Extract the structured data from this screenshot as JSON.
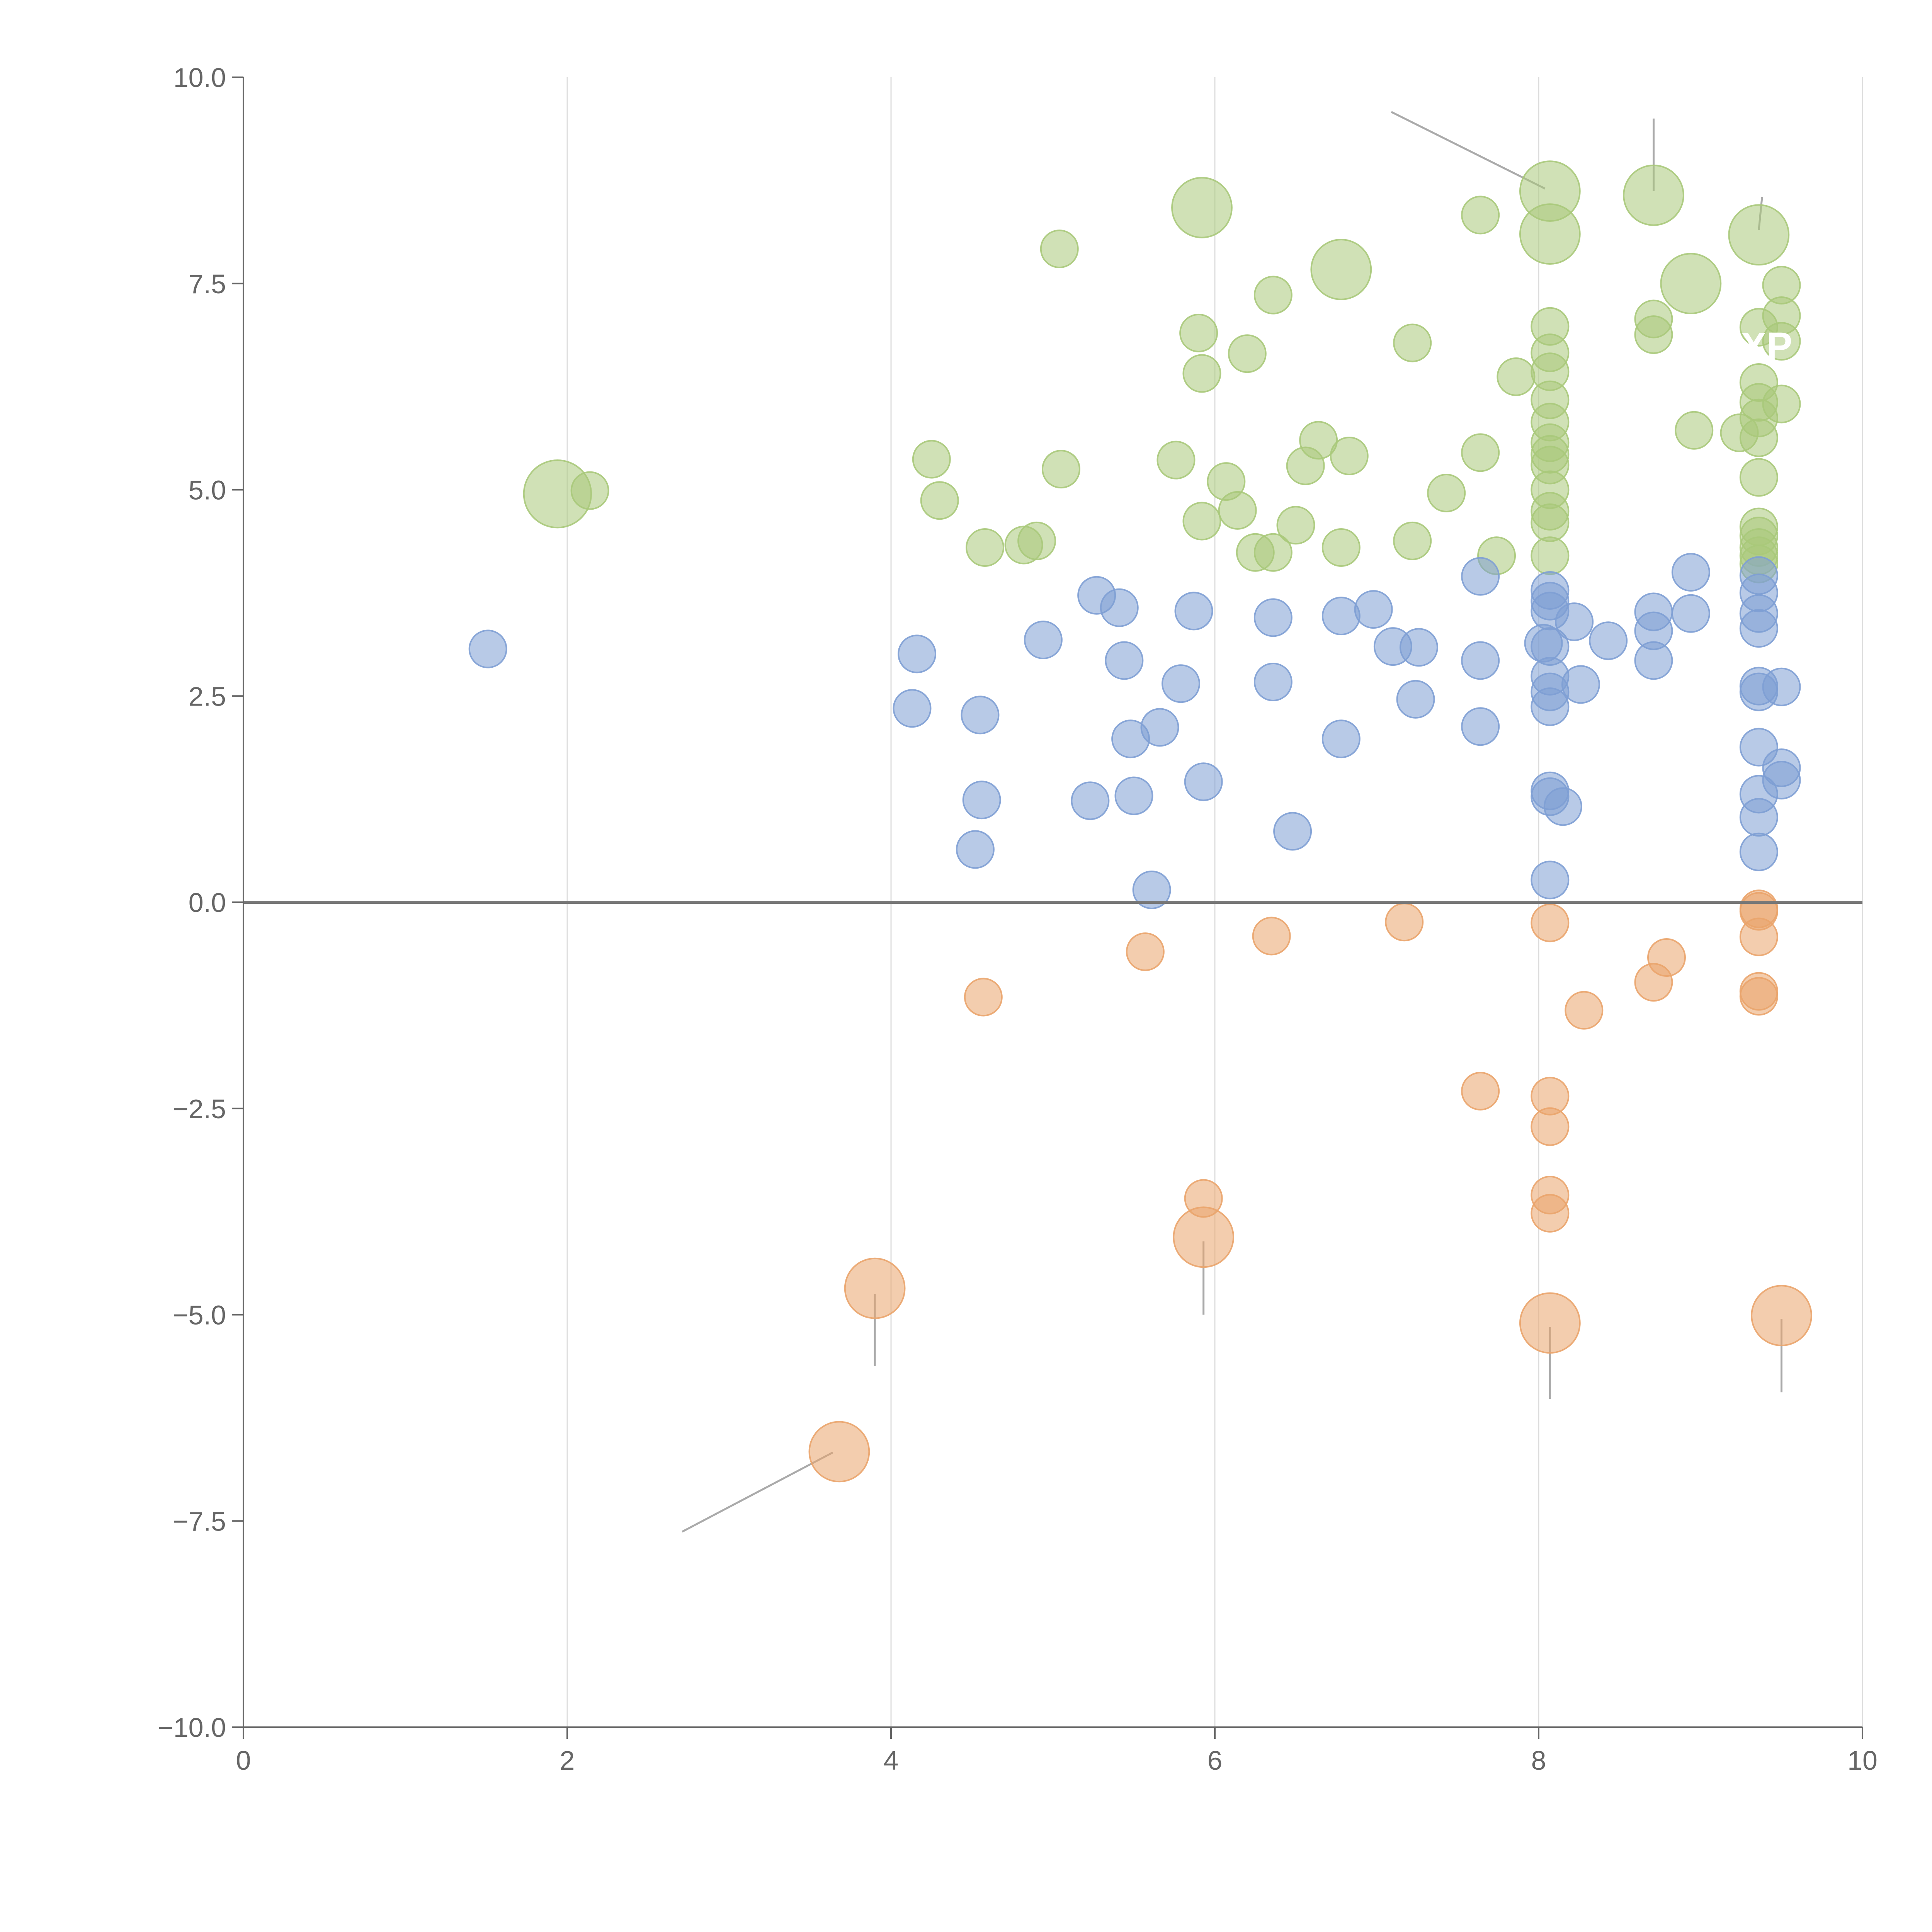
{
  "chart_data": {
    "type": "scatter",
    "title": "",
    "xlabel": "",
    "ylabel": "",
    "xlim": [
      0,
      10
    ],
    "ylim": [
      -10,
      10
    ],
    "x_ticks": [
      "0",
      "2",
      "4",
      "6",
      "8",
      "10"
    ],
    "y_ticks": [
      "10.0",
      "7.5",
      "5.0",
      "2.5",
      "0.0",
      "−2.5",
      "−5.0",
      "−7.5",
      "−10.0"
    ],
    "x_tick_values": [
      0,
      2,
      4,
      6,
      8,
      10
    ],
    "y_tick_values": [
      10,
      7.5,
      5,
      2.5,
      0,
      -2.5,
      -5,
      -7.5,
      -10
    ],
    "vertical_grid": true,
    "zero_line": true,
    "colors": {
      "green": "#a9c97a",
      "blue": "#7e9fd4",
      "orange": "#eaa46c",
      "axis": "#666666",
      "grid": "#dddddd",
      "leader": "#aaaaaa"
    },
    "series": [
      {
        "name": "green",
        "size_unit_small": 1,
        "points": [
          [
            1.94,
            4.95,
            3.3
          ],
          [
            2.14,
            4.99,
            1
          ],
          [
            4.25,
            5.37,
            1
          ],
          [
            4.3,
            4.87,
            1
          ],
          [
            4.58,
            4.3,
            1
          ],
          [
            4.82,
            4.33,
            1
          ],
          [
            4.9,
            4.38,
            1
          ],
          [
            5.04,
            7.92,
            1
          ],
          [
            5.05,
            5.25,
            1
          ],
          [
            5.76,
            5.36,
            1
          ],
          [
            5.92,
            8.42,
            2.6
          ],
          [
            5.9,
            6.9,
            1
          ],
          [
            5.92,
            6.41,
            1
          ],
          [
            5.92,
            4.62,
            1
          ],
          [
            6.07,
            5.1,
            1
          ],
          [
            6.14,
            4.75,
            1
          ],
          [
            6.2,
            6.65,
            1
          ],
          [
            6.25,
            4.24,
            1
          ],
          [
            6.36,
            4.24,
            1
          ],
          [
            6.36,
            7.36,
            1
          ],
          [
            6.5,
            4.57,
            1
          ],
          [
            6.56,
            5.29,
            1
          ],
          [
            6.64,
            5.6,
            1
          ],
          [
            6.78,
            7.67,
            2.6
          ],
          [
            6.78,
            4.3,
            1
          ],
          [
            6.83,
            5.41,
            1
          ],
          [
            7.22,
            6.78,
            1
          ],
          [
            7.22,
            4.38,
            1
          ],
          [
            7.43,
            4.96,
            1
          ],
          [
            7.64,
            8.33,
            1
          ],
          [
            7.64,
            5.45,
            1
          ],
          [
            7.74,
            4.2,
            1
          ],
          [
            7.86,
            6.37,
            1
          ],
          [
            8.07,
            8.62,
            2.6
          ],
          [
            8.07,
            8.1,
            2.6
          ],
          [
            8.07,
            6.98,
            1
          ],
          [
            8.07,
            6.66,
            1
          ],
          [
            8.07,
            6.43,
            1
          ],
          [
            8.07,
            6.09,
            1
          ],
          [
            8.07,
            5.82,
            1
          ],
          [
            8.07,
            5.57,
            1
          ],
          [
            8.07,
            5.43,
            1
          ],
          [
            8.07,
            5.3,
            1
          ],
          [
            8.07,
            5.0,
            1
          ],
          [
            8.07,
            4.74,
            1
          ],
          [
            8.07,
            4.6,
            1
          ],
          [
            8.07,
            4.2,
            1
          ],
          [
            8.71,
            8.57,
            2.6
          ],
          [
            8.71,
            7.07,
            1
          ],
          [
            8.71,
            6.88,
            1
          ],
          [
            8.94,
            7.5,
            2.6
          ],
          [
            8.96,
            5.72,
            1
          ],
          [
            9.24,
            5.69,
            1
          ],
          [
            9.36,
            8.09,
            2.6
          ],
          [
            9.36,
            6.97,
            1
          ],
          [
            9.36,
            6.3,
            1
          ],
          [
            9.36,
            6.06,
            1
          ],
          [
            9.36,
            5.87,
            1
          ],
          [
            9.36,
            5.63,
            1
          ],
          [
            9.36,
            5.15,
            1
          ],
          [
            9.36,
            4.55,
            1
          ],
          [
            9.36,
            4.44,
            1
          ],
          [
            9.36,
            4.3,
            1
          ],
          [
            9.36,
            4.2,
            1
          ],
          [
            9.36,
            4.1,
            1
          ],
          [
            9.5,
            7.48,
            1
          ],
          [
            9.5,
            7.11,
            1
          ],
          [
            9.5,
            6.8,
            1
          ],
          [
            9.5,
            6.04,
            1
          ]
        ]
      },
      {
        "name": "blue",
        "points": [
          [
            1.51,
            3.07,
            1
          ],
          [
            4.13,
            2.35,
            1
          ],
          [
            4.16,
            3.01,
            1
          ],
          [
            4.52,
            0.64,
            1
          ],
          [
            4.55,
            2.27,
            1
          ],
          [
            4.56,
            1.24,
            1
          ],
          [
            4.94,
            3.18,
            1
          ],
          [
            5.23,
            1.23,
            1
          ],
          [
            5.27,
            3.72,
            1
          ],
          [
            5.41,
            3.57,
            1
          ],
          [
            5.44,
            2.93,
            1
          ],
          [
            5.48,
            1.98,
            1
          ],
          [
            5.5,
            1.29,
            1
          ],
          [
            5.61,
            0.15,
            1
          ],
          [
            5.66,
            2.12,
            1
          ],
          [
            5.79,
            2.65,
            1
          ],
          [
            5.87,
            3.53,
            1
          ],
          [
            5.93,
            1.46,
            1
          ],
          [
            6.36,
            3.45,
            1
          ],
          [
            6.36,
            2.67,
            1
          ],
          [
            6.48,
            0.86,
            1
          ],
          [
            6.78,
            3.47,
            1
          ],
          [
            6.78,
            1.98,
            1
          ],
          [
            6.98,
            3.55,
            1
          ],
          [
            7.1,
            3.1,
            1
          ],
          [
            7.24,
            2.46,
            1
          ],
          [
            7.26,
            3.09,
            1
          ],
          [
            7.64,
            3.95,
            1
          ],
          [
            7.64,
            2.93,
            1
          ],
          [
            7.64,
            2.13,
            1
          ],
          [
            8.03,
            3.14,
            1
          ],
          [
            8.07,
            3.78,
            1
          ],
          [
            8.07,
            3.65,
            1
          ],
          [
            8.07,
            3.53,
            1
          ],
          [
            8.07,
            3.1,
            1
          ],
          [
            8.07,
            2.74,
            1
          ],
          [
            8.07,
            2.55,
            1
          ],
          [
            8.07,
            2.37,
            1
          ],
          [
            8.07,
            1.35,
            1
          ],
          [
            8.07,
            1.28,
            1
          ],
          [
            8.07,
            0.27,
            1
          ],
          [
            8.15,
            1.16,
            1
          ],
          [
            8.22,
            3.4,
            1
          ],
          [
            8.26,
            2.64,
            1
          ],
          [
            8.43,
            3.17,
            1
          ],
          [
            8.71,
            3.52,
            1
          ],
          [
            8.71,
            3.29,
            1
          ],
          [
            8.71,
            2.93,
            1
          ],
          [
            8.94,
            4.0,
            1
          ],
          [
            8.94,
            3.5,
            1
          ],
          [
            9.36,
            3.96,
            1
          ],
          [
            9.36,
            3.75,
            1
          ],
          [
            9.36,
            3.5,
            1
          ],
          [
            9.36,
            3.32,
            1
          ],
          [
            9.36,
            2.62,
            1
          ],
          [
            9.36,
            2.55,
            1
          ],
          [
            9.36,
            1.88,
            1
          ],
          [
            9.36,
            1.31,
            1
          ],
          [
            9.36,
            1.03,
            1
          ],
          [
            9.36,
            0.61,
            1
          ],
          [
            9.5,
            2.61,
            1
          ],
          [
            9.5,
            1.63,
            1
          ],
          [
            9.5,
            1.48,
            1
          ]
        ]
      },
      {
        "name": "orange",
        "points": [
          [
            3.68,
            -6.66,
            2.6
          ],
          [
            3.9,
            -4.68,
            2.6
          ],
          [
            4.57,
            -1.15,
            1
          ],
          [
            5.57,
            -0.6,
            1
          ],
          [
            5.93,
            -3.59,
            1
          ],
          [
            5.93,
            -4.06,
            2.6
          ],
          [
            6.35,
            -0.41,
            1
          ],
          [
            7.17,
            -0.24,
            1
          ],
          [
            7.64,
            -2.29,
            1
          ],
          [
            8.07,
            -0.25,
            1
          ],
          [
            8.07,
            -2.35,
            1
          ],
          [
            8.07,
            -2.72,
            1
          ],
          [
            8.07,
            -3.55,
            1
          ],
          [
            8.07,
            -3.77,
            1
          ],
          [
            8.07,
            -5.1,
            2.6
          ],
          [
            8.28,
            -1.31,
            1
          ],
          [
            8.71,
            -0.97,
            1
          ],
          [
            8.79,
            -0.67,
            1
          ],
          [
            9.36,
            -0.08,
            1
          ],
          [
            9.36,
            -0.11,
            1
          ],
          [
            9.36,
            -0.42,
            1
          ],
          [
            9.36,
            -1.08,
            1
          ],
          [
            9.36,
            -1.14,
            1
          ],
          [
            9.5,
            -5.01,
            2.6
          ]
        ]
      }
    ],
    "leader_lines": [
      [
        7.09,
        9.58,
        8.04,
        8.65
      ],
      [
        8.71,
        9.5,
        8.71,
        8.62
      ],
      [
        9.38,
        8.55,
        9.36,
        8.15
      ],
      [
        3.64,
        -6.67,
        2.71,
        -7.63
      ],
      [
        3.9,
        -4.75,
        3.9,
        -5.62
      ],
      [
        5.93,
        -4.11,
        5.93,
        -5.0
      ],
      [
        8.07,
        -5.15,
        8.07,
        -6.02
      ],
      [
        9.5,
        -5.05,
        9.5,
        -5.94
      ]
    ],
    "annotation_text": "XP"
  }
}
